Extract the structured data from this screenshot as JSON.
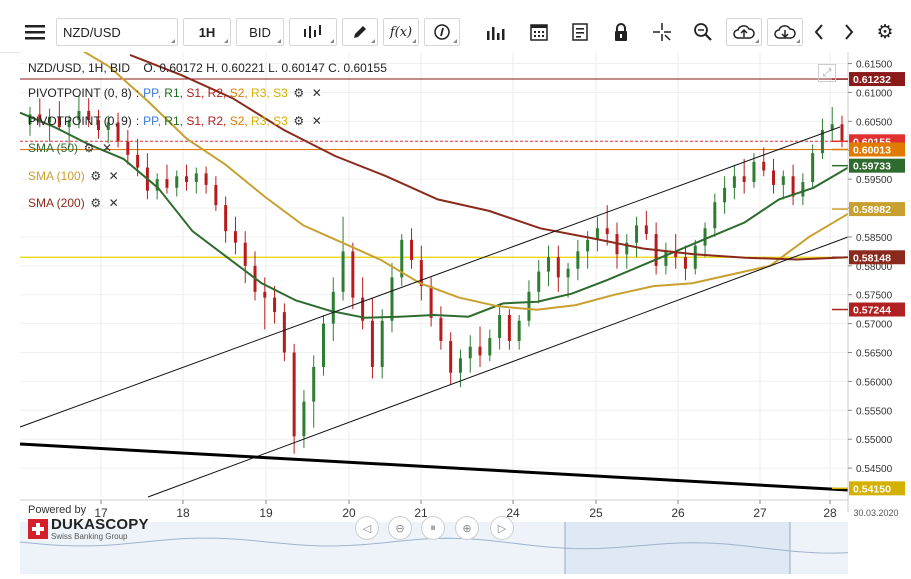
{
  "toolbar": {
    "symbol": "NZD/USD",
    "timeframe": "1H",
    "price_side": "BID",
    "icons": [
      "menu-icon",
      "candles-icon",
      "pencil-icon",
      "function-icon",
      "info-icon",
      "volume-bars-icon",
      "calendar-icon",
      "notes-icon",
      "lock-icon",
      "crosshair-icon",
      "zoom-icon",
      "cloud-upload-icon",
      "cloud-download-icon",
      "prev-icon",
      "next-icon",
      "settings-icon"
    ],
    "function_glyph": "f(x)"
  },
  "header": {
    "instrument": "NZD/USD, 1H, BID",
    "ohlc": "O. 0.60172 H. 0.60221 L. 0.60147 C. 0.60155"
  },
  "legend": {
    "pivot1_name": "PIVOTPOINT (0, 8)",
    "pivot2_name": "PIVOTPOINT (0, 9)",
    "levels": [
      "PP,",
      "R1,",
      "S1,",
      "R2,",
      "S2,",
      "R3,",
      "S3"
    ],
    "level_colors": [
      "#3a7bd5",
      "#1e6b1e",
      "#b02020",
      "#b02020",
      "#e07a00",
      "#d4b000",
      "#d4b000"
    ],
    "sma50": "SMA (50)",
    "sma100": "SMA (100)",
    "sma200": "SMA (200)",
    "sma50_color": "#2e6b2e",
    "sma100_color": "#c8a030",
    "sma200_color": "#8b2a1c"
  },
  "branding": {
    "powered": "Powered by",
    "name": "DUKASCOPY",
    "tagline": "Swiss Banking Group"
  },
  "chart_data": {
    "type": "candlestick",
    "x_ticks": [
      "17",
      "18",
      "19",
      "20",
      "21",
      "24",
      "25",
      "26",
      "27",
      "28"
    ],
    "x_end_label": "30.03.2020",
    "y_ticks": [
      0.615,
      0.61,
      0.605,
      0.6,
      0.595,
      0.59,
      0.585,
      0.58,
      0.575,
      0.57,
      0.565,
      0.56,
      0.555,
      0.55,
      0.545
    ],
    "y_tick_labels": [
      "0.61500",
      "0.61000",
      "0.60500",
      "0.60000",
      "0.59500",
      "0.59000",
      "0.58500",
      "0.58000",
      "0.57500",
      "0.57000",
      "0.56500",
      "0.56000",
      "0.55500",
      "0.55000",
      "0.54500"
    ],
    "ylim": [
      0.54,
      0.617
    ],
    "last_price": 0.60155,
    "price_markers": [
      {
        "label": "0.61232",
        "value": 0.61232,
        "color": "#8b1a1a"
      },
      {
        "label": "0.60155",
        "value": 0.60155,
        "color": "#e03030"
      },
      {
        "label": "0.60013",
        "value": 0.60013,
        "color": "#e07a00"
      },
      {
        "label": "0.59733",
        "value": 0.59733,
        "color": "#2e6b2e"
      },
      {
        "label": "0.58982",
        "value": 0.58982,
        "color": "#c8a030"
      },
      {
        "label": "0.58148",
        "value": 0.58148,
        "color": "#8b2a1c"
      },
      {
        "label": "0.57244",
        "value": 0.57244,
        "color": "#b02020"
      },
      {
        "label": "0.54150",
        "value": 0.5415,
        "color": "#d4b000"
      }
    ],
    "series": [
      {
        "name": "SMA (50)",
        "color": "#2e6b2e",
        "values": [
          0.6065,
          0.604,
          0.601,
          0.5985,
          0.5935,
          0.586,
          0.5815,
          0.577,
          0.574,
          0.5722,
          0.571,
          0.5712,
          0.5715,
          0.5712,
          0.5735,
          0.5738,
          0.5752,
          0.5775,
          0.58,
          0.5825,
          0.585,
          0.5875,
          0.5915,
          0.5935,
          0.597
        ]
      },
      {
        "name": "SMA (100)",
        "color": "#c8a030",
        "values": [
          0.6185,
          0.6145,
          0.6085,
          0.602,
          0.5975,
          0.592,
          0.587,
          0.584,
          0.581,
          0.577,
          0.5745,
          0.573,
          0.5724,
          0.5732,
          0.575,
          0.5765,
          0.577,
          0.5785,
          0.58,
          0.585,
          0.589
        ]
      },
      {
        "name": "SMA (200)",
        "color": "#8b2a1c",
        "values": [
          0.6165,
          0.613,
          0.609,
          0.6035,
          0.599,
          0.5955,
          0.5915,
          0.5895,
          0.5865,
          0.5848,
          0.583,
          0.582,
          0.5814,
          0.5811,
          0.5815
        ]
      }
    ],
    "candles": [
      [
        0.6045,
        0.6075,
        0.6025,
        0.6062
      ],
      [
        0.6062,
        0.609,
        0.604,
        0.6048
      ],
      [
        0.6048,
        0.6072,
        0.6015,
        0.6058
      ],
      [
        0.6058,
        0.6085,
        0.6035,
        0.604
      ],
      [
        0.604,
        0.606,
        0.6005,
        0.6052
      ],
      [
        0.6052,
        0.6095,
        0.6038,
        0.6068
      ],
      [
        0.6068,
        0.609,
        0.604,
        0.6052
      ],
      [
        0.6052,
        0.607,
        0.602,
        0.6035
      ],
      [
        0.6035,
        0.606,
        0.6012,
        0.6048
      ],
      [
        0.6048,
        0.6065,
        0.6005,
        0.6015
      ],
      [
        0.6015,
        0.6035,
        0.5975,
        0.5992
      ],
      [
        0.5992,
        0.602,
        0.5955,
        0.597
      ],
      [
        0.597,
        0.5995,
        0.5915,
        0.593
      ],
      [
        0.593,
        0.596,
        0.5915,
        0.595
      ],
      [
        0.595,
        0.5975,
        0.5925,
        0.5935
      ],
      [
        0.5935,
        0.5965,
        0.592,
        0.5955
      ],
      [
        0.5955,
        0.5975,
        0.593,
        0.5945
      ],
      [
        0.5945,
        0.597,
        0.5925,
        0.596
      ],
      [
        0.596,
        0.5972,
        0.5925,
        0.594
      ],
      [
        0.594,
        0.5955,
        0.5895,
        0.5905
      ],
      [
        0.5905,
        0.592,
        0.584,
        0.586
      ],
      [
        0.586,
        0.5885,
        0.582,
        0.584
      ],
      [
        0.584,
        0.586,
        0.577,
        0.58
      ],
      [
        0.58,
        0.5825,
        0.574,
        0.5755
      ],
      [
        0.5755,
        0.578,
        0.569,
        0.5745
      ],
      [
        0.5745,
        0.5765,
        0.57,
        0.572
      ],
      [
        0.572,
        0.5735,
        0.5635,
        0.565
      ],
      [
        0.565,
        0.5665,
        0.5475,
        0.5505
      ],
      [
        0.5505,
        0.5585,
        0.5485,
        0.5565
      ],
      [
        0.5565,
        0.5645,
        0.552,
        0.5625
      ],
      [
        0.5625,
        0.5715,
        0.561,
        0.57
      ],
      [
        0.57,
        0.578,
        0.567,
        0.5755
      ],
      [
        0.5755,
        0.5885,
        0.574,
        0.5825
      ],
      [
        0.5825,
        0.584,
        0.5725,
        0.5745
      ],
      [
        0.5745,
        0.578,
        0.569,
        0.5705
      ],
      [
        0.5705,
        0.5745,
        0.5605,
        0.5625
      ],
      [
        0.5625,
        0.5725,
        0.5605,
        0.5705
      ],
      [
        0.5705,
        0.5805,
        0.5685,
        0.578
      ],
      [
        0.578,
        0.5855,
        0.5765,
        0.5845
      ],
      [
        0.5845,
        0.5865,
        0.5795,
        0.581
      ],
      [
        0.581,
        0.5835,
        0.574,
        0.5765
      ],
      [
        0.5765,
        0.578,
        0.5695,
        0.571
      ],
      [
        0.571,
        0.573,
        0.5655,
        0.567
      ],
      [
        0.567,
        0.5685,
        0.5595,
        0.5615
      ],
      [
        0.5615,
        0.5655,
        0.559,
        0.564
      ],
      [
        0.564,
        0.568,
        0.5615,
        0.566
      ],
      [
        0.566,
        0.5695,
        0.5625,
        0.5645
      ],
      [
        0.5645,
        0.569,
        0.5635,
        0.5675
      ],
      [
        0.5675,
        0.5735,
        0.5655,
        0.5715
      ],
      [
        0.5715,
        0.5725,
        0.5655,
        0.567
      ],
      [
        0.567,
        0.5715,
        0.5655,
        0.5705
      ],
      [
        0.5705,
        0.5775,
        0.5695,
        0.5755
      ],
      [
        0.5755,
        0.581,
        0.5735,
        0.579
      ],
      [
        0.579,
        0.5835,
        0.5765,
        0.5815
      ],
      [
        0.5815,
        0.5835,
        0.5755,
        0.578
      ],
      [
        0.578,
        0.5805,
        0.5745,
        0.5795
      ],
      [
        0.5795,
        0.5845,
        0.5775,
        0.5825
      ],
      [
        0.5825,
        0.586,
        0.5795,
        0.5845
      ],
      [
        0.5845,
        0.5885,
        0.5825,
        0.5865
      ],
      [
        0.5865,
        0.5905,
        0.5835,
        0.5855
      ],
      [
        0.5855,
        0.5875,
        0.5795,
        0.582
      ],
      [
        0.582,
        0.5855,
        0.5795,
        0.584
      ],
      [
        0.584,
        0.5885,
        0.5815,
        0.587
      ],
      [
        0.587,
        0.5895,
        0.5845,
        0.5855
      ],
      [
        0.5855,
        0.5875,
        0.5785,
        0.58
      ],
      [
        0.58,
        0.584,
        0.5785,
        0.5825
      ],
      [
        0.5825,
        0.5855,
        0.5795,
        0.5815
      ],
      [
        0.5815,
        0.5835,
        0.5775,
        0.5795
      ],
      [
        0.5795,
        0.5845,
        0.5785,
        0.5835
      ],
      [
        0.5835,
        0.5875,
        0.5815,
        0.5865
      ],
      [
        0.5865,
        0.5925,
        0.585,
        0.591
      ],
      [
        0.591,
        0.5955,
        0.589,
        0.5935
      ],
      [
        0.5935,
        0.5975,
        0.5915,
        0.5955
      ],
      [
        0.5955,
        0.5985,
        0.5925,
        0.5945
      ],
      [
        0.5945,
        0.5995,
        0.5935,
        0.598
      ],
      [
        0.598,
        0.6005,
        0.5955,
        0.5965
      ],
      [
        0.5965,
        0.5985,
        0.5925,
        0.594
      ],
      [
        0.594,
        0.5965,
        0.5915,
        0.5955
      ],
      [
        0.5955,
        0.5975,
        0.5905,
        0.592
      ],
      [
        0.592,
        0.596,
        0.5905,
        0.5945
      ],
      [
        0.5945,
        0.601,
        0.5935,
        0.5995
      ],
      [
        0.5995,
        0.6055,
        0.5985,
        0.6035
      ],
      [
        0.6035,
        0.6075,
        0.6015,
        0.6045
      ],
      [
        0.6045,
        0.606,
        0.6005,
        0.6017
      ]
    ]
  }
}
